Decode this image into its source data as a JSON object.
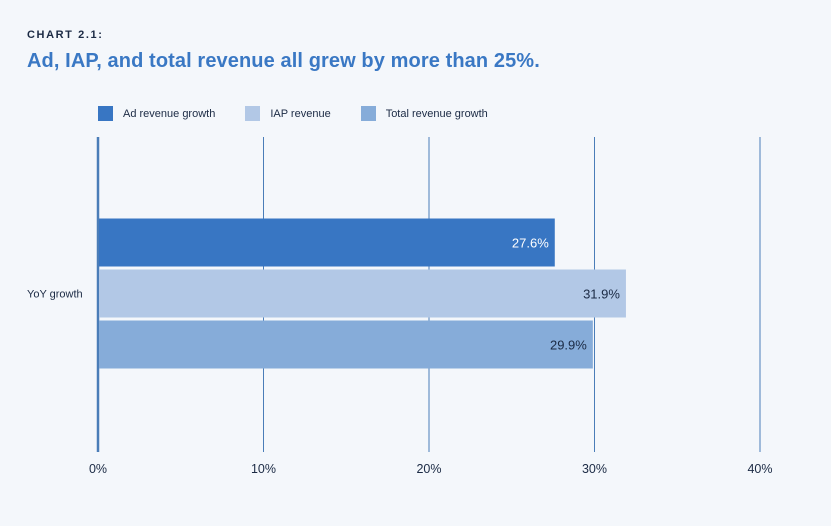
{
  "header": {
    "kicker": "CHART 2.1:",
    "title": "Ad, IAP, and total revenue all grew by more than 25%."
  },
  "chart_data": {
    "type": "bar",
    "orientation": "horizontal",
    "categories": [
      "YoY growth"
    ],
    "series": [
      {
        "name": "Ad revenue growth",
        "values": [
          27.6
        ],
        "color": "#3876c3",
        "label_color": "#ffffff"
      },
      {
        "name": "IAP revenue",
        "values": [
          31.9
        ],
        "color": "#b2c8e6",
        "label_color": "#1b2a44"
      },
      {
        "name": "Total revenue growth",
        "values": [
          29.9
        ],
        "color": "#86acd9",
        "label_color": "#1b2a44"
      }
    ],
    "xlim": [
      0,
      40
    ],
    "xticks": [
      0,
      10,
      20,
      30,
      40
    ],
    "tick_suffix": "%",
    "grid": true,
    "legend_position": "top-left"
  }
}
